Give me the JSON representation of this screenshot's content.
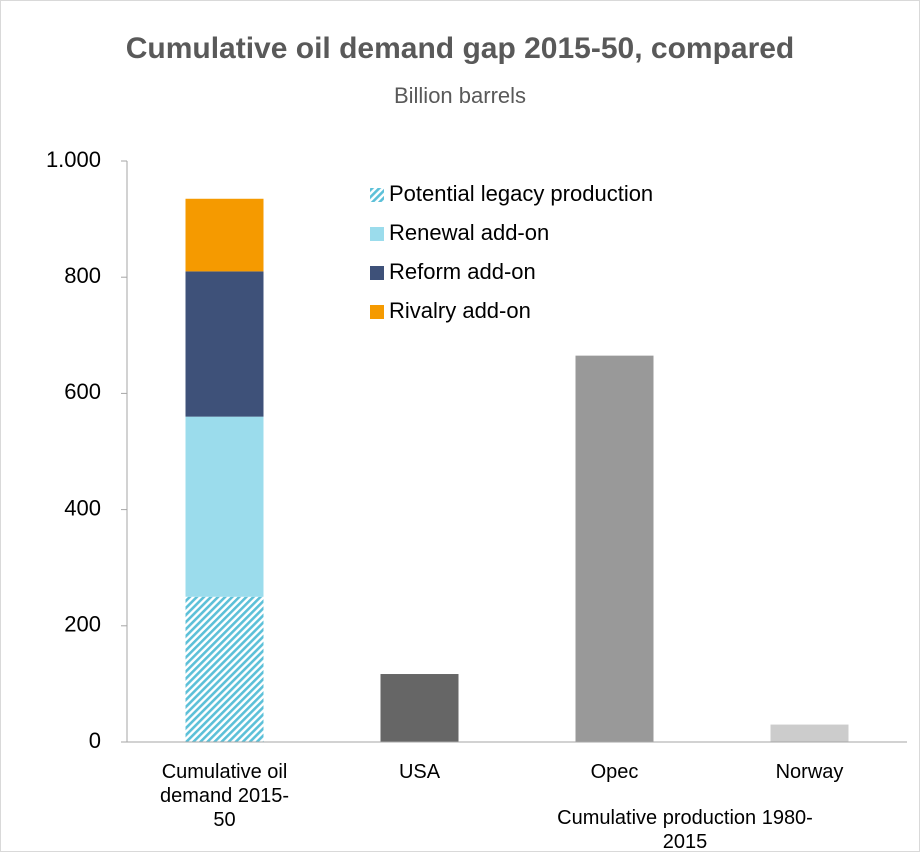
{
  "chart_data": {
    "type": "bar",
    "stacked": true,
    "title": "Cumulative oil demand gap 2015-50, compared",
    "subtitle": "Billion barrels",
    "annotation": "Cumulative production 1980-2015",
    "categories": [
      "Cumulative oil demand 2015-50",
      "USA",
      "Opec",
      "Norway"
    ],
    "series": [
      {
        "name": "Potential legacy production",
        "color": "#9bdcec",
        "hatched": true,
        "values": [
          250,
          null,
          null,
          null
        ]
      },
      {
        "name": "Renewal add-on",
        "color": "#9bdcec",
        "values": [
          310,
          null,
          null,
          null
        ]
      },
      {
        "name": "Reform add-on",
        "color": "#3e5179",
        "values": [
          250,
          null,
          null,
          null
        ]
      },
      {
        "name": "Rivalry add-on",
        "color": "#f59a00",
        "values": [
          125,
          null,
          null,
          null
        ]
      },
      {
        "colors": [
          null,
          "#666666",
          "#999999",
          "#cccccc"
        ],
        "values": [
          null,
          117,
          665,
          30
        ]
      }
    ],
    "ylim": [
      0,
      1000
    ],
    "yticks": [
      0,
      200,
      400,
      600,
      800,
      {
        "value": 1000,
        "label": "1.000"
      }
    ],
    "grid": false,
    "legend": "top"
  }
}
